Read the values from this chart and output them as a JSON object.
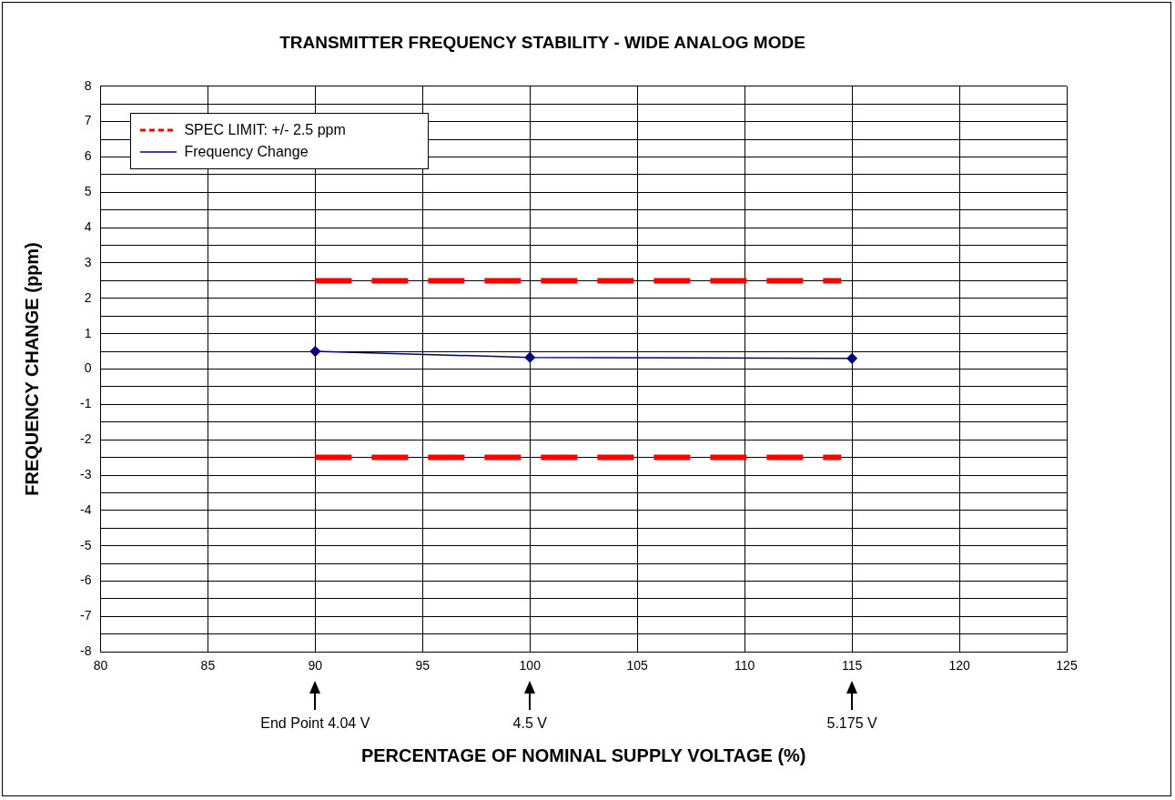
{
  "chart_data": {
    "type": "line",
    "title": "TRANSMITTER FREQUENCY STABILITY - WIDE ANALOG MODE",
    "xlabel": "PERCENTAGE OF NOMINAL SUPPLY VOLTAGE (%)",
    "ylabel": "FREQUENCY CHANGE (ppm)",
    "series": [
      {
        "name": "SPEC LIMIT: +/- 2.5 ppm",
        "color": "#ff0000",
        "x": [
          90,
          114.5
        ],
        "values": [
          2.5,
          2.5
        ],
        "line_style": "dashed",
        "marker": "none"
      },
      {
        "color": "#ff0000",
        "x": [
          90,
          114.5
        ],
        "values": [
          -2.5,
          -2.5
        ],
        "line_style": "dashed",
        "marker": "none"
      },
      {
        "name": "Frequency Change",
        "color": "#000080",
        "x": [
          90,
          100,
          115
        ],
        "values": [
          0.5,
          0.33,
          0.3
        ],
        "line_style": "solid",
        "marker": "diamond"
      }
    ],
    "xlim": [
      80,
      125
    ],
    "xticks": [
      80,
      85,
      90,
      95,
      100,
      105,
      110,
      115,
      120,
      125
    ],
    "ylim": [
      -8,
      8
    ],
    "yticks": [
      -8,
      {
        "value": -7.5,
        "label": null
      },
      -7,
      {
        "value": -6.5,
        "label": null
      },
      -6,
      {
        "value": -5.5,
        "label": null
      },
      -5,
      {
        "value": -4.5,
        "label": null
      },
      -4,
      {
        "value": -3.5,
        "label": null
      },
      -3,
      {
        "value": -2.5,
        "label": null
      },
      -2,
      {
        "value": -1.5,
        "label": null
      },
      -1,
      {
        "value": -0.5,
        "label": null
      },
      0,
      {
        "value": 0.5,
        "label": null
      },
      1,
      {
        "value": 1.5,
        "label": null
      },
      2,
      {
        "value": 2.5,
        "label": null
      },
      3,
      {
        "value": 3.5,
        "label": null
      },
      4,
      {
        "value": 4.5,
        "label": null
      },
      5,
      {
        "value": 5.5,
        "label": null
      },
      6,
      {
        "value": 6.5,
        "label": null
      },
      7,
      {
        "value": 7.5,
        "label": null
      },
      8
    ],
    "grid": true,
    "legend": "top left",
    "annotations": [
      "End Point 4.04 V",
      "4.5 V",
      "5.175 V"
    ]
  }
}
